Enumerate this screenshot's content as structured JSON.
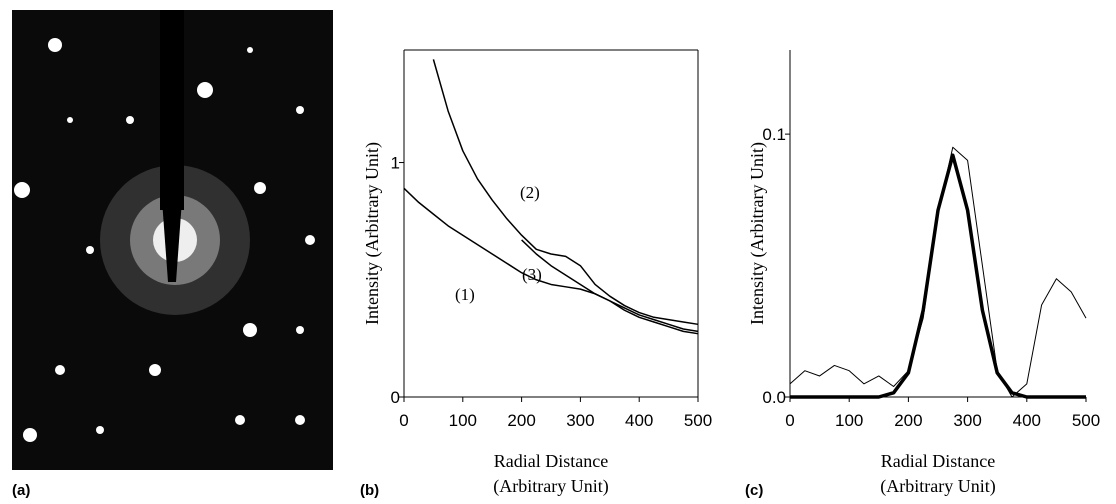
{
  "image_panel": {
    "label": "(a)"
  },
  "chart_data": [
    {
      "type": "line",
      "panel_label": "(b)",
      "ylabel": "Intensity (Arbitrary Unit)",
      "xlabel": [
        "Radial Distance",
        "(Arbitrary Unit)"
      ],
      "x": [
        0,
        25,
        50,
        75,
        100,
        125,
        150,
        175,
        200,
        225,
        250,
        275,
        300,
        325,
        350,
        375,
        400,
        425,
        450,
        475,
        500
      ],
      "xlim": [
        0,
        500
      ],
      "xticks": [
        0,
        100,
        200,
        300,
        400,
        500
      ],
      "ylim": [
        0,
        1.48
      ],
      "yticks": [
        0,
        1
      ],
      "series": [
        {
          "name": "(1)",
          "color": "#000000",
          "values": [
            0.89,
            0.83,
            0.78,
            0.73,
            0.69,
            0.65,
            0.61,
            0.57,
            0.53,
            0.5,
            0.48,
            0.47,
            0.46,
            0.44,
            0.41,
            0.37,
            0.34,
            0.32,
            0.3,
            0.28,
            0.27
          ]
        },
        {
          "name": "(2)",
          "color": "#000000",
          "values": [
            null,
            null,
            1.44,
            1.22,
            1.05,
            0.93,
            0.84,
            0.76,
            0.69,
            0.63,
            0.61,
            0.6,
            0.56,
            0.48,
            0.43,
            0.39,
            0.36,
            0.34,
            0.33,
            0.32,
            0.31
          ]
        },
        {
          "name": "(3)",
          "color": "#000000",
          "values": [
            null,
            null,
            null,
            null,
            null,
            null,
            null,
            null,
            0.67,
            0.61,
            0.56,
            0.52,
            0.48,
            0.44,
            0.41,
            0.38,
            0.35,
            0.33,
            0.31,
            0.29,
            0.28
          ]
        }
      ]
    },
    {
      "type": "line",
      "panel_label": "(c)",
      "ylabel": "Intensity (Arbitrary Unit)",
      "xlabel": [
        "Radial Distance",
        "(Arbitrary Unit)"
      ],
      "x": [
        0,
        25,
        50,
        75,
        100,
        125,
        150,
        175,
        200,
        225,
        250,
        275,
        300,
        325,
        350,
        375,
        400,
        425,
        450,
        475,
        500
      ],
      "xlim": [
        0,
        500
      ],
      "xticks": [
        0,
        100,
        200,
        300,
        400,
        500
      ],
      "ylim": [
        0,
        0.132
      ],
      "yticks": [
        {
          "value": 0,
          "label": "0.0"
        },
        0.1
      ],
      "series": [
        {
          "color": "#000000",
          "width": 1,
          "values": [
            0.005,
            0.01,
            0.008,
            0.012,
            0.01,
            0.005,
            0.008,
            0.004,
            0.01,
            0.03,
            0.07,
            0.095,
            0.09,
            0.05,
            0.01,
            0,
            0.005,
            0.035,
            0.045,
            0.04,
            0.03
          ]
        },
        {
          "color": "#000000",
          "width": 3.5,
          "values": [
            0,
            0,
            0,
            0,
            0,
            0,
            0,
            0.0016,
            0.0092,
            0.033,
            0.071,
            0.092,
            0.071,
            0.033,
            0.0092,
            0.0016,
            0,
            0,
            0,
            0,
            0
          ]
        }
      ]
    }
  ]
}
